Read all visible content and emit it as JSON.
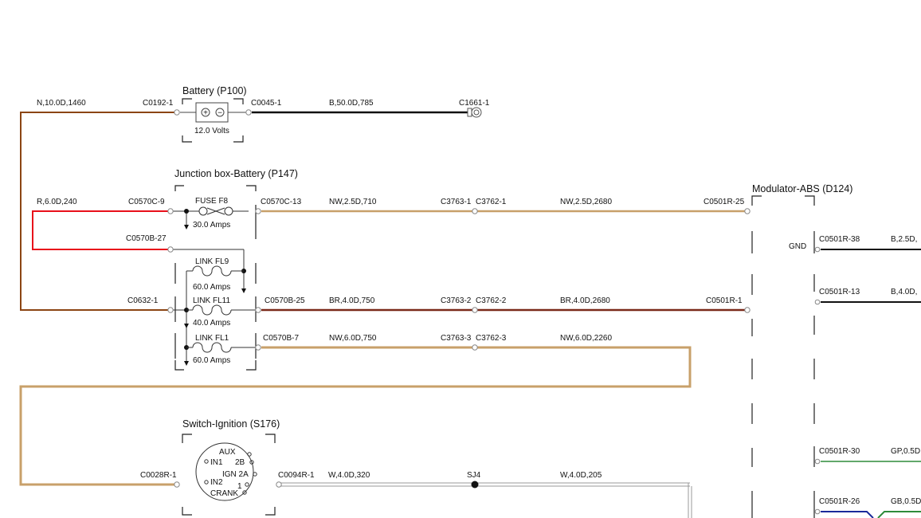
{
  "colors": {
    "brown": "#8B4513",
    "red": "#E8101A",
    "black": "#111111",
    "tan": "#C8A06A",
    "dark_red": "#7A2A1A",
    "white_wire": "#BBBBBB",
    "green": "#2E8B3A",
    "blue": "#1A2A9A"
  },
  "components": {
    "battery": {
      "title": "Battery (P100)",
      "volts": "12.0 Volts",
      "plus": "+",
      "minus": "−"
    },
    "junction": {
      "title": "Junction box-Battery (P147)"
    },
    "ignition": {
      "title": "Switch-Ignition (S176)"
    },
    "modulator": {
      "title": "Modulator-ABS (D124)"
    }
  },
  "wires": {
    "n_10": "N,10.0D,1460",
    "b_50": "B,50.0D,785",
    "r_6": "R,6.0D,240",
    "nw_25_710": "NW,2.5D,710",
    "nw_25_2680": "NW,2.5D,2680",
    "br_40_750": "BR,4.0D,750",
    "br_40_2680": "BR,4.0D,2680",
    "nw_60_750": "NW,6.0D,750",
    "nw_60_2260": "NW,6.0D,2260",
    "w_40_320": "W,4.0D,320",
    "w_40_205": "W,4.0D,205",
    "b_25": "B,2.5D,",
    "b_40": "B,4.0D,",
    "gp_05": "GP,0.5D",
    "gb_05": "GB,0.5D"
  },
  "connectors": {
    "c0192_1": "C0192-1",
    "c0045_1": "C0045-1",
    "c1661_1": "C1661-1",
    "c0570c_9": "C0570C-9",
    "c0570c_13": "C0570C-13",
    "c3763_1": "C3763-1",
    "c3762_1": "C3762-1",
    "c0501r_25": "C0501R-25",
    "c0570b_27": "C0570B-27",
    "c0632_1": "C0632-1",
    "c0570b_25": "C0570B-25",
    "c3763_2": "C3763-2",
    "c3762_2": "C3762-2",
    "c0501r_1": "C0501R-1",
    "c0570b_7": "C0570B-7",
    "c3763_3": "C3763-3",
    "c3762_3": "C3762-3",
    "c0028r_1": "C0028R-1",
    "c0094r_1": "C0094R-1",
    "sj4": "SJ4",
    "c0501r_38": "C0501R-38",
    "c0501r_13": "C0501R-13",
    "c0501r_30": "C0501R-30",
    "c0501r_26": "C0501R-26",
    "gnd": "GND"
  },
  "fuses": {
    "f8": {
      "name": "FUSE F8",
      "rating": "30.0 Amps"
    },
    "fl9": {
      "name": "LINK FL9",
      "rating": "60.0 Amps"
    },
    "fl11": {
      "name": "LINK FL11",
      "rating": "40.0 Amps"
    },
    "fl1": {
      "name": "LINK FL1",
      "rating": "60.0 Amps"
    }
  },
  "ignition_pins": {
    "aux": "AUX",
    "in1": "IN1",
    "p2b": "2B",
    "ign2a": "IGN 2A",
    "in2": "IN2",
    "p1": "1",
    "crank": "CRANK"
  }
}
